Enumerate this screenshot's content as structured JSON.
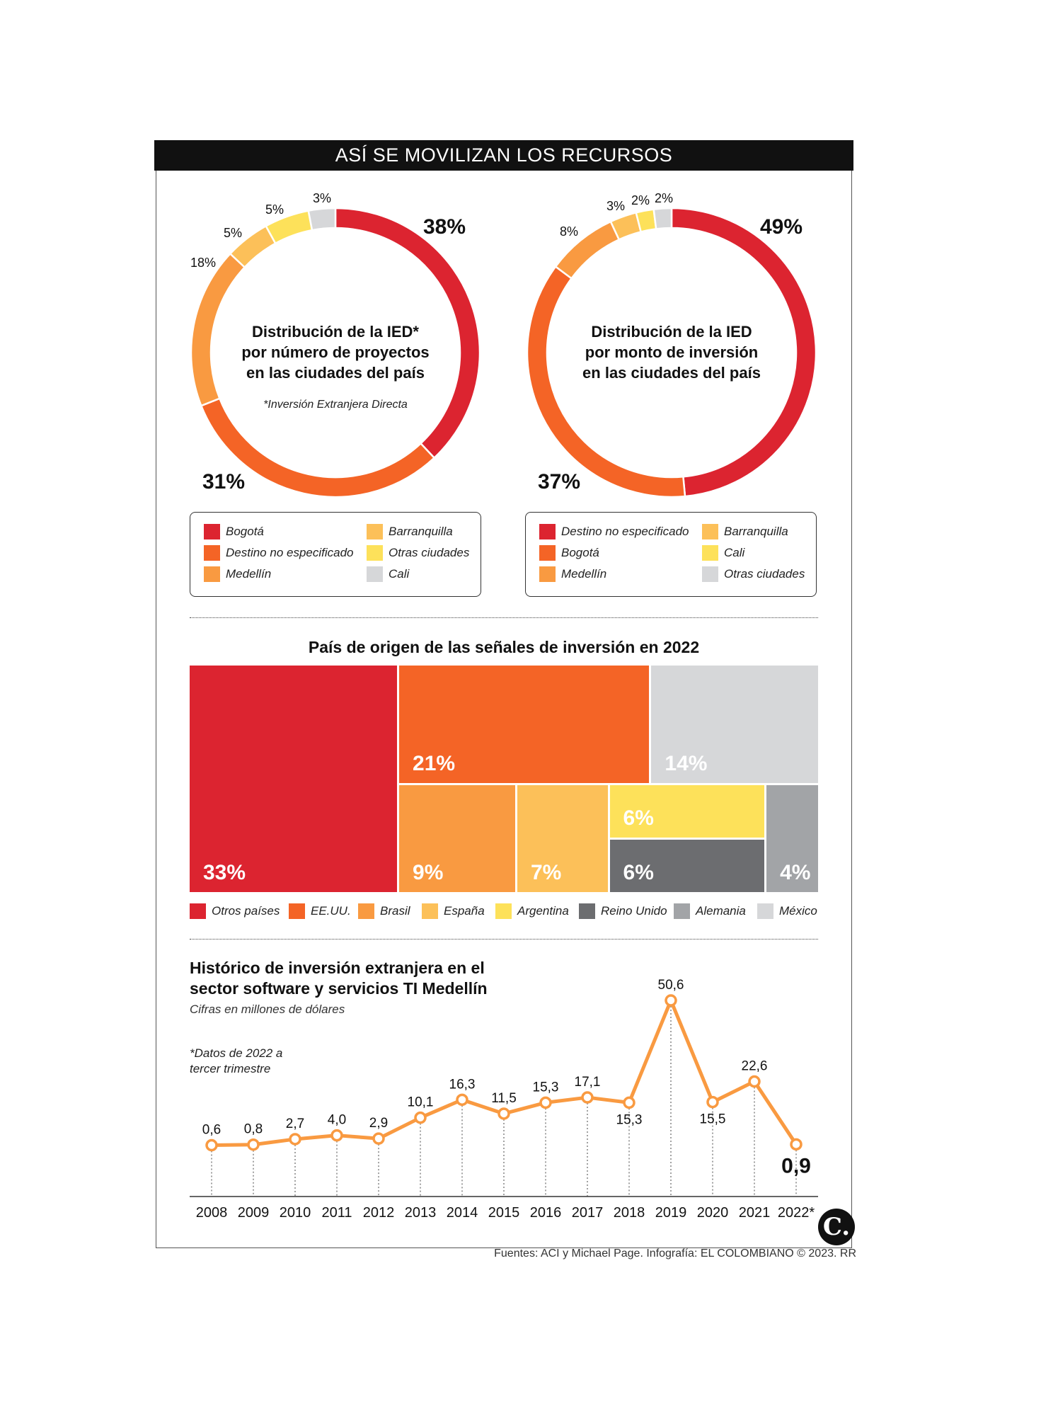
{
  "header": {
    "title": "ASÍ SE MOVILIZAN LOS RECURSOS"
  },
  "donut1": {
    "center_lines": [
      "Distribución de la IED*",
      "por número de proyectos",
      "en las ciudades del país"
    ],
    "note": "*Inversión Extranjera Directa",
    "legend": [
      {
        "label": "Bogotá",
        "color": "#dc2430"
      },
      {
        "label": "Destino no especificado",
        "color": "#f46426"
      },
      {
        "label": "Medellín",
        "color": "#f99a41"
      },
      {
        "label": "Barranquilla",
        "color": "#fcc059"
      },
      {
        "label": "Otras ciudades",
        "color": "#fde15a"
      },
      {
        "label": "Cali",
        "color": "#d6d7d9"
      }
    ]
  },
  "donut2": {
    "center_lines": [
      "Distribución de la IED",
      "por monto de inversión",
      "en las ciudades del país"
    ],
    "legend": [
      {
        "label": "Destino no especificado",
        "color": "#dc2430"
      },
      {
        "label": "Bogotá",
        "color": "#f46426"
      },
      {
        "label": "Medellín",
        "color": "#f99a41"
      },
      {
        "label": "Barranquilla",
        "color": "#fcc059"
      },
      {
        "label": "Cali",
        "color": "#fde15a"
      },
      {
        "label": "Otras ciudades",
        "color": "#d6d7d9"
      }
    ]
  },
  "treemap": {
    "title": "País de origen de las señales de inversión en 2022",
    "legend": [
      {
        "label": "Otros países",
        "color": "#dc2430"
      },
      {
        "label": "EE.UU.",
        "color": "#f46426"
      },
      {
        "label": "Brasil",
        "color": "#f99a41"
      },
      {
        "label": "España",
        "color": "#fcc059"
      },
      {
        "label": "Argentina",
        "color": "#fde15a"
      },
      {
        "label": "Reino Unido",
        "color": "#6c6d70"
      },
      {
        "label": "Alemania",
        "color": "#a2a4a7"
      },
      {
        "label": "México",
        "color": "#d6d7d9"
      }
    ]
  },
  "line": {
    "title_lines": [
      "Histórico de inversión extranjera en el",
      "sector software y servicios TI Medellín"
    ],
    "subtitle": "Cifras en millones de dólares",
    "note_lines": [
      "*Datos de 2022 a",
      "tercer trimestre"
    ],
    "color": "#f99a41"
  },
  "chart_data": [
    {
      "type": "pie",
      "title": "Distribución de la IED* por número de proyectos en las ciudades del país",
      "categories": [
        "Bogotá",
        "Destino no especificado",
        "Medellín",
        "Barranquilla",
        "Otras ciudades",
        "Cali"
      ],
      "values": [
        38,
        31,
        18,
        5,
        5,
        3
      ],
      "labels": [
        "38%",
        "31%",
        "18%",
        "5%",
        "5%",
        "3%"
      ],
      "colors": [
        "#dc2430",
        "#f46426",
        "#f99a41",
        "#fcc059",
        "#fde15a",
        "#d6d7d9"
      ]
    },
    {
      "type": "pie",
      "title": "Distribución de la IED por monto de inversión en las ciudades del país",
      "categories": [
        "Destino no especificado",
        "Bogotá",
        "Medellín",
        "Barranquilla",
        "Cali",
        "Otras ciudades"
      ],
      "values": [
        49,
        37,
        8,
        3,
        2,
        2
      ],
      "labels": [
        "49%",
        "37%",
        "8%",
        "3%",
        "2%",
        "2%"
      ],
      "colors": [
        "#dc2430",
        "#f46426",
        "#f99a41",
        "#fcc059",
        "#fde15a",
        "#d6d7d9"
      ]
    },
    {
      "type": "treemap",
      "title": "País de origen de las señales de inversión en 2022",
      "categories": [
        "Otros países",
        "EE.UU.",
        "México",
        "Brasil",
        "España",
        "Argentina",
        "Reino Unido",
        "Alemania"
      ],
      "values": [
        33,
        21,
        14,
        9,
        7,
        6,
        6,
        4
      ],
      "labels": [
        "33%",
        "21%",
        "14%",
        "9%",
        "7%",
        "6%",
        "6%",
        "4%"
      ],
      "colors": [
        "#dc2430",
        "#f46426",
        "#d6d7d9",
        "#f99a41",
        "#fcc059",
        "#fde15a",
        "#6c6d70",
        "#a2a4a7"
      ]
    },
    {
      "type": "line",
      "title": "Histórico de inversión extranjera en el sector software y servicios TI Medellín",
      "ylabel": "Cifras en millones de dólares",
      "x": [
        "2008",
        "2009",
        "2010",
        "2011",
        "2012",
        "2013",
        "2014",
        "2015",
        "2016",
        "2017",
        "2018",
        "2019",
        "2020",
        "2021",
        "2022*"
      ],
      "values": [
        0.6,
        0.8,
        2.7,
        4.0,
        2.9,
        10.1,
        16.3,
        11.5,
        15.3,
        17.1,
        15.3,
        50.6,
        15.5,
        22.6,
        0.9
      ],
      "labels": [
        "0,6",
        "0,8",
        "2,7",
        "4,0",
        "2,9",
        "10,1",
        "16,3",
        "11,5",
        "15,3",
        "17,1",
        "15,3",
        "50,6",
        "15,5",
        "22,6",
        "0,9"
      ],
      "ylim": [
        0,
        55
      ],
      "grid": false
    }
  ],
  "footer": {
    "source": "Fuentes: ACI y Michael Page. Infografía: EL COLOMBIANO © 2023. RR",
    "logo": "C."
  }
}
